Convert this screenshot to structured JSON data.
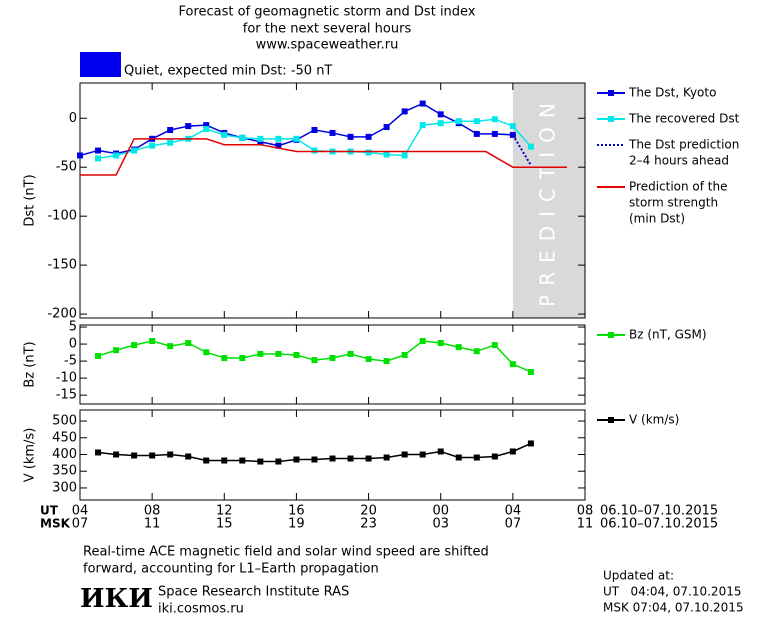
{
  "header": {
    "title_lines": [
      "Forecast of geomagnetic storm and Dst index",
      "for the next several hours",
      "www.spaceweather.ru"
    ]
  },
  "chart_data": [
    {
      "type": "line",
      "ylabel": "Dst (nT)",
      "status": "Quiet, expected min Dst: -50 nT",
      "status_color": "#0000ee",
      "prediction_zone": [
        24,
        28
      ],
      "prediction_label": "PREDICTION",
      "xlim": [
        0,
        28
      ],
      "xticks": [
        0,
        4,
        8,
        12,
        16,
        20,
        24,
        28
      ],
      "ylim": [
        -204,
        36
      ],
      "yticks": [
        0,
        -50,
        -100,
        -150,
        -200
      ],
      "series": [
        {
          "name": "The Dst, Kyoto",
          "color": "#0000e0",
          "marker": "square",
          "x": [
            0,
            1,
            2,
            3,
            4,
            5,
            6,
            7,
            8,
            9,
            10,
            11,
            12,
            13,
            14,
            15,
            16,
            17,
            18,
            19,
            20,
            21,
            22,
            23,
            24
          ],
          "values": [
            -38,
            -33,
            -36,
            -32,
            -21,
            -12,
            -8,
            -7,
            -15,
            -20,
            -24,
            -28,
            -22,
            -12,
            -15,
            -19,
            -19,
            -9,
            7,
            15,
            4,
            -5,
            -16,
            -16,
            -17
          ]
        },
        {
          "name": "The recovered Dst",
          "color": "#00e8e8",
          "marker": "square",
          "x": [
            1,
            2,
            3,
            4,
            5,
            6,
            7,
            8,
            9,
            10,
            11,
            12,
            13,
            14,
            15,
            16,
            17,
            18,
            19,
            20,
            21,
            22,
            23,
            24,
            25
          ],
          "values": [
            -41,
            -38,
            -33,
            -28,
            -25,
            -21,
            -11,
            -17,
            -20,
            -21,
            -21,
            -21,
            -33,
            -34,
            -34,
            -35,
            -37,
            -38,
            -7,
            -5,
            -3,
            -3,
            -1,
            -8,
            -29
          ]
        },
        {
          "name": [
            "The Dst prediction",
            "2–4 hours ahead"
          ],
          "color": "#0000c0",
          "dash": true,
          "x": [
            24,
            25
          ],
          "values": [
            -17,
            -48
          ]
        },
        {
          "name": [
            "Prediction of the",
            "storm strength",
            "(min Dst)"
          ],
          "color": "#e00000",
          "x": [
            0,
            2,
            3,
            7,
            8,
            10,
            12,
            22.5,
            24,
            27
          ],
          "values": [
            -58,
            -58,
            -21,
            -21,
            -27,
            -27,
            -34,
            -34,
            -50,
            -50
          ]
        }
      ]
    },
    {
      "type": "line",
      "ylabel": "Bz (nT)",
      "xlim": [
        0,
        28
      ],
      "xticks": [
        0,
        4,
        8,
        12,
        16,
        20,
        24,
        28
      ],
      "ylim": [
        -17.6,
        5.6
      ],
      "yticks": [
        5,
        0,
        -5,
        -10,
        -15
      ],
      "x": [
        1,
        2,
        3,
        4,
        5,
        6,
        7,
        8,
        9,
        10,
        11,
        12,
        13,
        14,
        15,
        16,
        17,
        18,
        19,
        20,
        21,
        22,
        23,
        24,
        25
      ],
      "series": [
        {
          "name": "Bz (nT, GSM)",
          "color": "#00e000",
          "marker": "square",
          "values": [
            -3.5,
            -1.8,
            -0.3,
            0.9,
            -0.6,
            0.3,
            -2.4,
            -4.1,
            -4.1,
            -2.9,
            -2.9,
            -3.2,
            -4.7,
            -4.1,
            -2.9,
            -4.4,
            -5.0,
            -3.2,
            0.9,
            0.3,
            -0.9,
            -2.1,
            -0.3,
            -5.9,
            -8.2
          ]
        }
      ]
    },
    {
      "type": "line",
      "ylabel": "V (km/s)",
      "xlim": [
        0,
        28
      ],
      "xticks": [
        {
          "value": 0,
          "label": "04"
        },
        {
          "value": 4,
          "label": "08"
        },
        {
          "value": 8,
          "label": "12"
        },
        {
          "value": 12,
          "label": "16"
        },
        {
          "value": 16,
          "label": "20"
        },
        {
          "value": 20,
          "label": "00"
        },
        {
          "value": 24,
          "label": "04"
        },
        {
          "value": 28,
          "label": "08"
        }
      ],
      "xticks_msk": [
        "07",
        "11",
        "15",
        "19",
        "23",
        "03",
        "07",
        "11"
      ],
      "xlabel_ut": "UT",
      "xlabel_msk": "MSK",
      "date_range_ut": "06.10–07.10.2015",
      "date_range_msk": "06.10–07.10.2015",
      "ylim": [
        264,
        533
      ],
      "yticks": [
        500,
        450,
        400,
        350,
        300
      ],
      "x": [
        1,
        2,
        3,
        4,
        5,
        6,
        7,
        8,
        9,
        10,
        11,
        12,
        13,
        14,
        15,
        16,
        17,
        18,
        19,
        20,
        21,
        22,
        23,
        24,
        25
      ],
      "series": [
        {
          "name": "V (km/s)",
          "color": "#000000",
          "marker": "square",
          "values": [
            406,
            400,
            397,
            397,
            400,
            394,
            382,
            382,
            382,
            379,
            379,
            385,
            385,
            388,
            388,
            388,
            391,
            400,
            400,
            409,
            391,
            391,
            394,
            409,
            433
          ]
        }
      ]
    }
  ],
  "footer": {
    "note_lines": [
      "Real-time ACE magnetic field and solar wind speed are shifted",
      "forward, accounting for L1–Earth propagation"
    ],
    "logo": "ИКИ",
    "institute": "Space Research Institute RAS",
    "site": "iki.cosmos.ru",
    "updated_label": "Updated at:",
    "updated_ut": "UT   04:04, 07.10.2015",
    "updated_msk": "MSK 07:04, 07.10.2015"
  }
}
